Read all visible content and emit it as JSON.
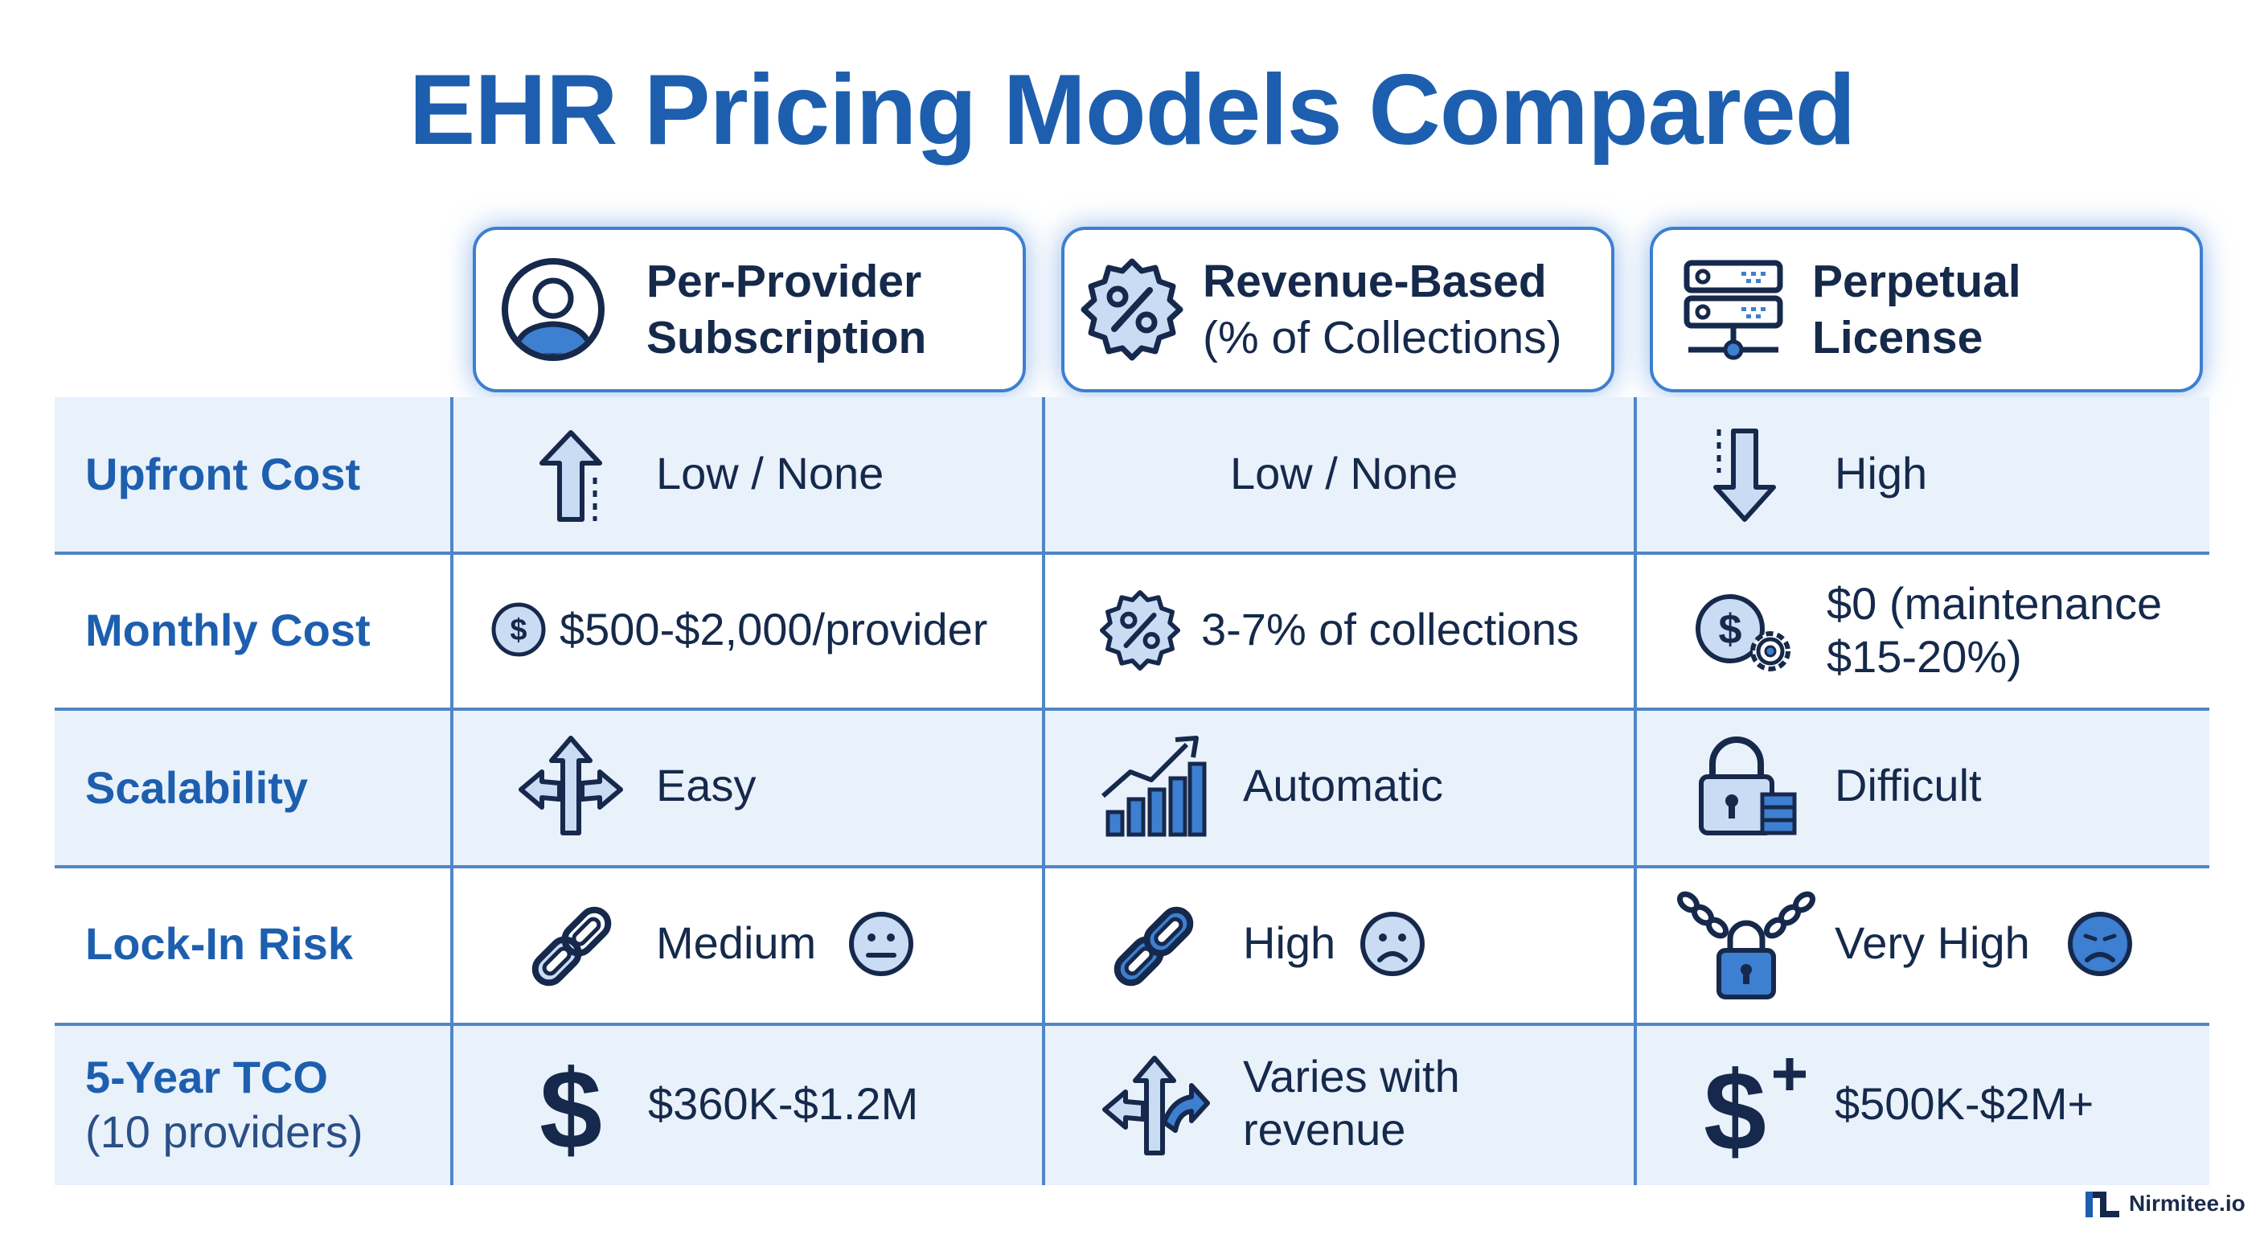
{
  "title": "EHR Pricing Models Compared",
  "columns": [
    {
      "line1": "Per-Provider",
      "line2": "Subscription",
      "icon": "user-circle-icon"
    },
    {
      "line1": "Revenue-Based",
      "line2": "(% of Collections)",
      "icon": "percent-badge-icon"
    },
    {
      "line1": "Perpetual",
      "line2": "License",
      "icon": "server-icon"
    }
  ],
  "rows": [
    {
      "label": "Upfront Cost",
      "cells": [
        {
          "text": "Low / None",
          "icon": "arrow-up-icon"
        },
        {
          "text": "Low / None"
        },
        {
          "text": "High",
          "icon": "arrow-down-icon"
        }
      ]
    },
    {
      "label": "Monthly Cost",
      "cells": [
        {
          "text": "$500-$2,000/provider",
          "icon": "dollar-coin-icon"
        },
        {
          "text": "3-7% of collections",
          "icon": "percent-badge-icon"
        },
        {
          "text": "$0 (maintenance $15-20%)",
          "icon": "dollar-gear-icon"
        }
      ]
    },
    {
      "label": "Scalability",
      "cells": [
        {
          "text": "Easy",
          "icon": "split-arrows-icon"
        },
        {
          "text": "Automatic",
          "icon": "growth-chart-icon"
        },
        {
          "text": "Difficult",
          "icon": "lock-server-icon"
        }
      ]
    },
    {
      "label": "Lock-In Risk",
      "cells": [
        {
          "text": "Medium",
          "icon": "chain-link-icon",
          "face": "neutral-face-icon"
        },
        {
          "text": "High",
          "icon": "chain-link-icon",
          "face": "sad-face-icon"
        },
        {
          "text": "Very High",
          "icon": "chain-padlock-icon",
          "face": "unhappy-face-icon"
        }
      ]
    },
    {
      "label": "5-Year TCO",
      "sublabel": "(10 providers)",
      "cells": [
        {
          "text": "$360K-$1.2M",
          "icon": "dollar-sign-icon"
        },
        {
          "text": "Varies with revenue",
          "icon": "split-arrows-icon"
        },
        {
          "text": "$500K-$2M+",
          "icon": "dollar-plus-icon"
        }
      ]
    }
  ],
  "brand": "Nirmitee.io",
  "colors": {
    "title": "#1d5fae",
    "band": "#e8f0fb",
    "line": "#4f86c7",
    "accent": "#3d7fd0"
  }
}
